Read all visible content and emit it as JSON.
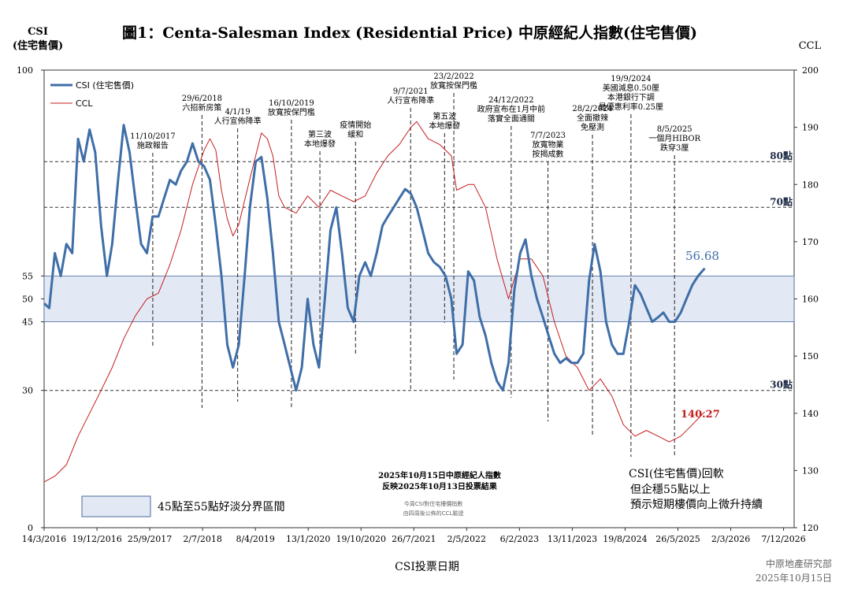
{
  "chart_data": {
    "type": "line",
    "title": "圖1：Centa-Salesman Index (Residential Price)  中原經紀人指數(住宅售價)",
    "ylabel_left_line1": "CSI",
    "ylabel_left_line2": "(住宅售價)",
    "ylabel_right": "CCL",
    "xlabel": "CSI投票日期",
    "left_axis": {
      "range": [
        0,
        100
      ],
      "ticks": [
        0,
        30,
        45,
        50,
        55,
        100
      ]
    },
    "right_axis": {
      "range": [
        120,
        200
      ],
      "ticks": [
        120,
        130,
        140,
        150,
        160,
        170,
        180,
        190,
        200
      ]
    },
    "x_ticks": [
      "14/3/2016",
      "19/12/2016",
      "25/9/2017",
      "2/7/2018",
      "8/4/2019",
      "13/1/2020",
      "19/10/2020",
      "26/7/2021",
      "2/5/2022",
      "6/2/2023",
      "13/11/2023",
      "19/8/2024",
      "26/5/2025",
      "2/3/2026",
      "7/12/2026"
    ],
    "x_range": [
      "2016-03-14",
      "2027-02-01"
    ],
    "grid": false,
    "legend": "top-left",
    "series": [
      {
        "name": "CSI (住宅售價)",
        "axis": "left",
        "color": "#3f6ea8",
        "points": [
          [
            "2016-03-14",
            49
          ],
          [
            "2016-04-10",
            48
          ],
          [
            "2016-05-10",
            60
          ],
          [
            "2016-06-10",
            55
          ],
          [
            "2016-07-10",
            62
          ],
          [
            "2016-08-10",
            60
          ],
          [
            "2016-09-10",
            85
          ],
          [
            "2016-10-10",
            80
          ],
          [
            "2016-11-10",
            87
          ],
          [
            "2016-12-10",
            82
          ],
          [
            "2017-01-10",
            66
          ],
          [
            "2017-02-10",
            55
          ],
          [
            "2017-03-10",
            62
          ],
          [
            "2017-04-10",
            76
          ],
          [
            "2017-05-10",
            88
          ],
          [
            "2017-06-10",
            82
          ],
          [
            "2017-07-10",
            72
          ],
          [
            "2017-08-10",
            62
          ],
          [
            "2017-09-10",
            60
          ],
          [
            "2017-10-10",
            68
          ],
          [
            "2017-11-10",
            68
          ],
          [
            "2017-12-10",
            72
          ],
          [
            "2018-01-10",
            76
          ],
          [
            "2018-02-10",
            75
          ],
          [
            "2018-03-10",
            78
          ],
          [
            "2018-04-10",
            80
          ],
          [
            "2018-05-10",
            84
          ],
          [
            "2018-06-10",
            80
          ],
          [
            "2018-07-10",
            79
          ],
          [
            "2018-08-10",
            76
          ],
          [
            "2018-09-10",
            66
          ],
          [
            "2018-10-10",
            55
          ],
          [
            "2018-11-10",
            40
          ],
          [
            "2018-12-10",
            35
          ],
          [
            "2019-01-10",
            40
          ],
          [
            "2019-02-10",
            55
          ],
          [
            "2019-03-10",
            70
          ],
          [
            "2019-04-10",
            80
          ],
          [
            "2019-05-10",
            81
          ],
          [
            "2019-06-10",
            72
          ],
          [
            "2019-07-10",
            60
          ],
          [
            "2019-08-10",
            45
          ],
          [
            "2019-09-10",
            40
          ],
          [
            "2019-10-10",
            35
          ],
          [
            "2019-11-10",
            30
          ],
          [
            "2019-12-10",
            35
          ],
          [
            "2020-01-10",
            50
          ],
          [
            "2020-02-10",
            40
          ],
          [
            "2020-03-10",
            35
          ],
          [
            "2020-04-10",
            50
          ],
          [
            "2020-05-10",
            65
          ],
          [
            "2020-06-10",
            70
          ],
          [
            "2020-07-10",
            60
          ],
          [
            "2020-08-10",
            48
          ],
          [
            "2020-09-10",
            45
          ],
          [
            "2020-10-10",
            55
          ],
          [
            "2020-11-10",
            58
          ],
          [
            "2020-12-10",
            55
          ],
          [
            "2021-01-10",
            60
          ],
          [
            "2021-02-10",
            66
          ],
          [
            "2021-03-10",
            68
          ],
          [
            "2021-04-10",
            70
          ],
          [
            "2021-05-10",
            72
          ],
          [
            "2021-06-10",
            74
          ],
          [
            "2021-07-10",
            73
          ],
          [
            "2021-08-10",
            70
          ],
          [
            "2021-09-10",
            65
          ],
          [
            "2021-10-10",
            60
          ],
          [
            "2021-11-10",
            58
          ],
          [
            "2021-12-10",
            57
          ],
          [
            "2022-01-10",
            55
          ],
          [
            "2022-02-10",
            50
          ],
          [
            "2022-03-10",
            38
          ],
          [
            "2022-04-10",
            40
          ],
          [
            "2022-05-10",
            56
          ],
          [
            "2022-06-10",
            54
          ],
          [
            "2022-07-10",
            46
          ],
          [
            "2022-08-10",
            42
          ],
          [
            "2022-09-10",
            36
          ],
          [
            "2022-10-10",
            32
          ],
          [
            "2022-11-10",
            30
          ],
          [
            "2022-12-10",
            36
          ],
          [
            "2023-01-10",
            52
          ],
          [
            "2023-02-10",
            60
          ],
          [
            "2023-03-10",
            63
          ],
          [
            "2023-04-10",
            55
          ],
          [
            "2023-05-10",
            50
          ],
          [
            "2023-06-10",
            46
          ],
          [
            "2023-07-10",
            42
          ],
          [
            "2023-08-10",
            38
          ],
          [
            "2023-09-10",
            36
          ],
          [
            "2023-10-10",
            37
          ],
          [
            "2023-11-10",
            36
          ],
          [
            "2023-12-10",
            36
          ],
          [
            "2024-01-10",
            38
          ],
          [
            "2024-02-10",
            54
          ],
          [
            "2024-03-10",
            62
          ],
          [
            "2024-04-10",
            56
          ],
          [
            "2024-05-10",
            45
          ],
          [
            "2024-06-10",
            40
          ],
          [
            "2024-07-10",
            38
          ],
          [
            "2024-08-10",
            38
          ],
          [
            "2024-09-10",
            45
          ],
          [
            "2024-10-10",
            53
          ],
          [
            "2024-11-10",
            51
          ],
          [
            "2024-12-10",
            48
          ],
          [
            "2025-01-10",
            45
          ],
          [
            "2025-02-10",
            46
          ],
          [
            "2025-03-10",
            47
          ],
          [
            "2025-04-10",
            45
          ],
          [
            "2025-05-10",
            45
          ],
          [
            "2025-06-10",
            47
          ],
          [
            "2025-07-10",
            50
          ],
          [
            "2025-08-10",
            53
          ],
          [
            "2025-09-10",
            55
          ],
          [
            "2025-10-15",
            56.68
          ]
        ]
      },
      {
        "name": "CCL",
        "axis": "right",
        "color": "#c41d1d",
        "points": [
          [
            "2016-03-14",
            128
          ],
          [
            "2016-05-10",
            129
          ],
          [
            "2016-07-10",
            131
          ],
          [
            "2016-09-10",
            136
          ],
          [
            "2016-11-10",
            140
          ],
          [
            "2017-01-10",
            144
          ],
          [
            "2017-03-10",
            148
          ],
          [
            "2017-05-10",
            153
          ],
          [
            "2017-07-10",
            157
          ],
          [
            "2017-09-10",
            160
          ],
          [
            "2017-11-10",
            161
          ],
          [
            "2018-01-10",
            166
          ],
          [
            "2018-03-10",
            172
          ],
          [
            "2018-05-10",
            180
          ],
          [
            "2018-07-10",
            186
          ],
          [
            "2018-08-10",
            188
          ],
          [
            "2018-09-10",
            186
          ],
          [
            "2018-10-10",
            179
          ],
          [
            "2018-11-10",
            174
          ],
          [
            "2018-12-10",
            171
          ],
          [
            "2019-01-10",
            173
          ],
          [
            "2019-03-10",
            181
          ],
          [
            "2019-05-10",
            189
          ],
          [
            "2019-06-10",
            188
          ],
          [
            "2019-07-10",
            185
          ],
          [
            "2019-08-10",
            178
          ],
          [
            "2019-09-10",
            176
          ],
          [
            "2019-11-10",
            175
          ],
          [
            "2020-01-10",
            178
          ],
          [
            "2020-03-10",
            176
          ],
          [
            "2020-05-10",
            179
          ],
          [
            "2020-07-10",
            178
          ],
          [
            "2020-09-10",
            177
          ],
          [
            "2020-11-10",
            178
          ],
          [
            "2021-01-10",
            182
          ],
          [
            "2021-03-10",
            185
          ],
          [
            "2021-05-10",
            187
          ],
          [
            "2021-07-10",
            190
          ],
          [
            "2021-08-10",
            191
          ],
          [
            "2021-10-10",
            188
          ],
          [
            "2021-12-10",
            187
          ],
          [
            "2022-02-10",
            185
          ],
          [
            "2022-03-10",
            179
          ],
          [
            "2022-05-10",
            180
          ],
          [
            "2022-06-10",
            180
          ],
          [
            "2022-08-10",
            176
          ],
          [
            "2022-10-10",
            167
          ],
          [
            "2022-12-10",
            160
          ],
          [
            "2023-02-10",
            167
          ],
          [
            "2023-04-10",
            167
          ],
          [
            "2023-06-10",
            164
          ],
          [
            "2023-08-10",
            156
          ],
          [
            "2023-10-10",
            150
          ],
          [
            "2023-12-10",
            148
          ],
          [
            "2024-02-10",
            144
          ],
          [
            "2024-04-10",
            146
          ],
          [
            "2024-06-10",
            143
          ],
          [
            "2024-08-10",
            138
          ],
          [
            "2024-10-10",
            136
          ],
          [
            "2024-12-10",
            137
          ],
          [
            "2025-02-10",
            136
          ],
          [
            "2025-04-10",
            135
          ],
          [
            "2025-06-10",
            136
          ],
          [
            "2025-08-10",
            138
          ],
          [
            "2025-10-15",
            140.27
          ]
        ]
      }
    ],
    "band": {
      "from": 45,
      "to": 55,
      "label": "45點至55點好淡分界區間"
    },
    "threshold_lines": [
      {
        "value": 80,
        "label": "80點"
      },
      {
        "value": 70,
        "label": "70點"
      },
      {
        "value": 30,
        "label": "30點"
      }
    ],
    "end_labels": {
      "csi": "56.68",
      "ccl": "140.27"
    },
    "events": [
      {
        "date": "2017-10-11",
        "lines": [
          "11/10/2017",
          "施政報告"
        ]
      },
      {
        "date": "2018-06-29",
        "lines": [
          "29/6/2018",
          "六招新房策"
        ]
      },
      {
        "date": "2019-01-04",
        "lines": [
          "4/1/19",
          "人行宣佈降準"
        ]
      },
      {
        "date": "2019-10-16",
        "lines": [
          "16/10/2019",
          "放寬按保門檻"
        ]
      },
      {
        "date": "2020-03-15",
        "lines": [
          "第三波",
          "本地爆發"
        ]
      },
      {
        "date": "2020-09-20",
        "lines": [
          "疫情開始",
          "緩和"
        ]
      },
      {
        "date": "2021-07-09",
        "lines": [
          "9/7/2021",
          "人行宣布降準"
        ]
      },
      {
        "date": "2022-01-05",
        "lines": [
          "第五波",
          "本地爆發"
        ]
      },
      {
        "date": "2022-02-23",
        "lines": [
          "23/2/2022",
          "放寬按保門檻"
        ]
      },
      {
        "date": "2022-12-24",
        "lines": [
          "24/12/2022",
          "政府宣布在1月中前",
          "落實全面通關"
        ]
      },
      {
        "date": "2023-07-07",
        "lines": [
          "7/7/2023",
          "放寬物業",
          "按揭成數"
        ]
      },
      {
        "date": "2024-02-28",
        "lines": [
          "28/2/2024",
          "全面撤辣",
          "免壓測"
        ]
      },
      {
        "date": "2024-09-19",
        "lines": [
          "19/9/2024",
          "美國減息0.50厘",
          "本港銀行下調",
          "最優惠利率0.25厘"
        ]
      },
      {
        "date": "2025-05-08",
        "lines": [
          "8/5/2025",
          "一個月HIBOR",
          "跌穿3厘"
        ]
      }
    ],
    "note_title": [
      "2025年10月15日中原經紀人指數",
      "反映2025年10月13日投票結果"
    ],
    "note_small": [
      "今周CSI對住宅樓價指數",
      "由四周後公佈的CCL驗證"
    ],
    "comment": [
      "CSI(住宅售價)回軟",
      "但企穩55點以上",
      "預示短期樓價向上微升持續"
    ],
    "footer": [
      "中原地產研究部",
      "2025年10月15日"
    ]
  },
  "colors": {
    "csi": "#3f6ea8",
    "ccl": "#c41d1d",
    "band": "#e3e9f4",
    "band_border": "#4a6a9c"
  }
}
